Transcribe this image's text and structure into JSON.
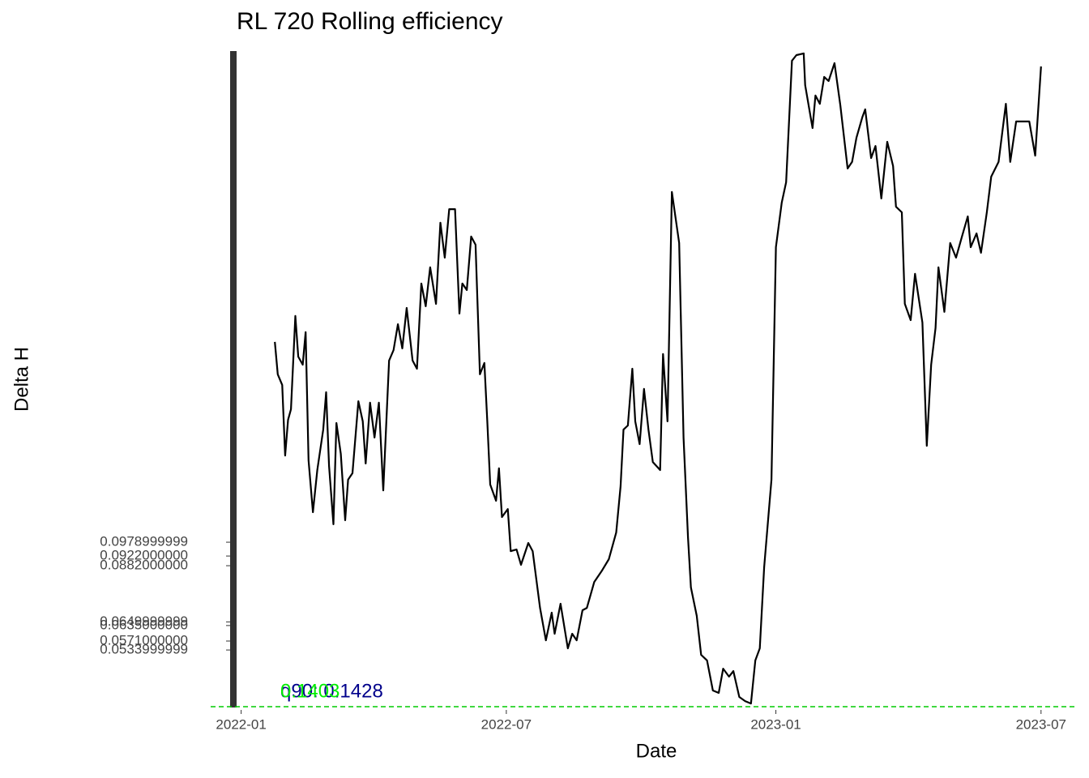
{
  "chart_data": {
    "type": "line",
    "title": "RL 720 Rolling efficiency",
    "x_label": "Date",
    "y_label": "Delta H",
    "color": "#000000",
    "x": [
      "2022-01-24",
      "2022-01-26",
      "2022-01-29",
      "2022-01-31",
      "2022-02-02",
      "2022-02-04",
      "2022-02-07",
      "2022-02-09",
      "2022-02-12",
      "2022-02-14",
      "2022-02-16",
      "2022-02-19",
      "2022-02-22",
      "2022-02-26",
      "2022-02-28",
      "2022-03-02",
      "2022-03-05",
      "2022-03-07",
      "2022-03-10",
      "2022-03-13",
      "2022-03-15",
      "2022-03-18",
      "2022-03-22",
      "2022-03-25",
      "2022-03-27",
      "2022-03-30",
      "2022-04-02",
      "2022-04-05",
      "2022-04-08",
      "2022-04-12",
      "2022-04-15",
      "2022-04-18",
      "2022-04-21",
      "2022-04-24",
      "2022-04-28",
      "2022-05-01",
      "2022-05-04",
      "2022-05-07",
      "2022-05-10",
      "2022-05-14",
      "2022-05-17",
      "2022-05-20",
      "2022-05-23",
      "2022-05-27",
      "2022-05-30",
      "2022-06-01",
      "2022-06-04",
      "2022-06-07",
      "2022-06-10",
      "2022-06-13",
      "2022-06-16",
      "2022-06-18",
      "2022-06-20",
      "2022-06-24",
      "2022-06-26",
      "2022-06-28",
      "2022-07-02",
      "2022-07-04",
      "2022-07-08",
      "2022-07-11",
      "2022-07-16",
      "2022-07-19",
      "2022-07-24",
      "2022-07-28",
      "2022-08-01",
      "2022-08-03",
      "2022-08-07",
      "2022-08-12",
      "2022-08-15",
      "2022-08-18",
      "2022-08-22",
      "2022-08-25",
      "2022-08-30",
      "2022-09-04",
      "2022-09-09",
      "2022-09-14",
      "2022-09-17",
      "2022-09-19",
      "2022-09-22",
      "2022-09-25",
      "2022-09-27",
      "2022-09-30",
      "2022-10-03",
      "2022-10-06",
      "2022-10-09",
      "2022-10-14",
      "2022-10-16",
      "2022-10-19",
      "2022-10-22",
      "2022-10-27",
      "2022-10-30",
      "2022-11-02",
      "2022-11-04",
      "2022-11-08",
      "2022-11-11",
      "2022-11-15",
      "2022-11-19",
      "2022-11-23",
      "2022-11-26",
      "2022-11-30",
      "2022-12-03",
      "2022-12-07",
      "2022-12-11",
      "2022-12-15",
      "2022-12-18",
      "2022-12-21",
      "2022-12-24",
      "2022-12-29",
      "2023-01-01",
      "2023-01-05",
      "2023-01-08",
      "2023-01-12",
      "2023-01-15",
      "2023-01-20",
      "2023-01-21",
      "2023-01-26",
      "2023-01-28",
      "2023-01-31",
      "2023-02-03",
      "2023-02-06",
      "2023-02-10",
      "2023-02-14",
      "2023-02-19",
      "2023-02-22",
      "2023-02-25",
      "2023-03-01",
      "2023-03-03",
      "2023-03-07",
      "2023-03-10",
      "2023-03-14",
      "2023-03-18",
      "2023-03-22",
      "2023-03-24",
      "2023-03-28",
      "2023-03-30",
      "2023-04-03",
      "2023-04-06",
      "2023-04-11",
      "2023-04-14",
      "2023-04-17",
      "2023-04-20",
      "2023-04-22",
      "2023-04-26",
      "2023-04-30",
      "2023-05-04",
      "2023-05-08",
      "2023-05-12",
      "2023-05-14",
      "2023-05-18",
      "2023-05-21",
      "2023-05-25",
      "2023-05-28",
      "2023-06-02",
      "2023-06-07",
      "2023-06-10",
      "2023-06-14",
      "2023-06-18",
      "2023-06-23",
      "2023-06-27",
      "2023-07-01"
    ],
    "values": [
      0.1806,
      0.1672,
      0.1628,
      0.1337,
      0.1484,
      0.1528,
      0.1913,
      0.1745,
      0.1712,
      0.1846,
      0.1317,
      0.1103,
      0.1277,
      0.1444,
      0.1598,
      0.1294,
      0.1053,
      0.1471,
      0.1344,
      0.107,
      0.1237,
      0.1264,
      0.1561,
      0.1478,
      0.1304,
      0.1555,
      0.1411,
      0.1555,
      0.1193,
      0.1729,
      0.1772,
      0.1879,
      0.1779,
      0.1946,
      0.1729,
      0.1695,
      0.2047,
      0.1953,
      0.2114,
      0.1963,
      0.2298,
      0.2154,
      0.2354,
      0.2354,
      0.1923,
      0.2047,
      0.202,
      0.2241,
      0.2207,
      0.1672,
      0.1719,
      0.1478,
      0.1217,
      0.115,
      0.1284,
      0.1083,
      0.1116,
      0.0942,
      0.0949,
      0.0886,
      0.0976,
      0.0942,
      0.0708,
      0.0574,
      0.0688,
      0.0601,
      0.0725,
      0.0541,
      0.0601,
      0.0574,
      0.0698,
      0.0708,
      0.0815,
      0.0859,
      0.0909,
      0.1019,
      0.121,
      0.1444,
      0.1461,
      0.1695,
      0.1478,
      0.1384,
      0.1612,
      0.1444,
      0.131,
      0.1277,
      0.1756,
      0.1478,
      0.2425,
      0.2214,
      0.1411,
      0.0999,
      0.0792,
      0.0675,
      0.0514,
      0.0491,
      0.0367,
      0.0357,
      0.0457,
      0.0424,
      0.0447,
      0.034,
      0.0323,
      0.0313,
      0.0491,
      0.0541,
      0.0876,
      0.1237,
      0.2197,
      0.2381,
      0.2465,
      0.2967,
      0.299,
      0.2997,
      0.2866,
      0.2689,
      0.2823,
      0.2789,
      0.29,
      0.2883,
      0.2957,
      0.2783,
      0.2522,
      0.2549,
      0.2649,
      0.2733,
      0.2766,
      0.2565,
      0.2615,
      0.2398,
      0.2632,
      0.2532,
      0.2364,
      0.2341,
      0.1963,
      0.1896,
      0.2087,
      0.1886,
      0.1377,
      0.1712,
      0.1863,
      0.2114,
      0.193,
      0.2214,
      0.2154,
      0.2241,
      0.2324,
      0.2197,
      0.2254,
      0.2174,
      0.2341,
      0.2488,
      0.2549,
      0.2789,
      0.2549,
      0.2716,
      0.2716,
      0.2716,
      0.2575,
      0.2943
    ],
    "xlim": [
      "2021-11-08",
      "2023-07-26"
    ],
    "xticks": [
      {
        "value": "2022-01-01",
        "label": "2022-01"
      },
      {
        "value": "2022-07-01",
        "label": "2022-07"
      },
      {
        "value": "2023-01-01",
        "label": "2023-01"
      },
      {
        "value": "2023-07-01",
        "label": "2023-07"
      }
    ],
    "ylim": [
      0.03,
      0.3
    ],
    "yticks": [
      {
        "value": 0.0979,
        "label": "0.0978999999"
      },
      {
        "value": 0.0922,
        "label": "0.0922000000"
      },
      {
        "value": 0.0882,
        "label": "0.0882000000"
      },
      {
        "value": 0.065,
        "label": "0.0649999999"
      },
      {
        "value": 0.0635,
        "label": "0.0635000000"
      },
      {
        "value": 0.0571,
        "label": "0.0571000000"
      },
      {
        "value": 0.0534,
        "label": "0.0533999999"
      }
    ],
    "hline": {
      "value": 0.03,
      "color": "#00cc00"
    },
    "annotations": [
      {
        "text": "q90: 0.1428",
        "color": "#00008b"
      },
      {
        "text": "0.1403",
        "color": "#00ee00"
      }
    ]
  }
}
